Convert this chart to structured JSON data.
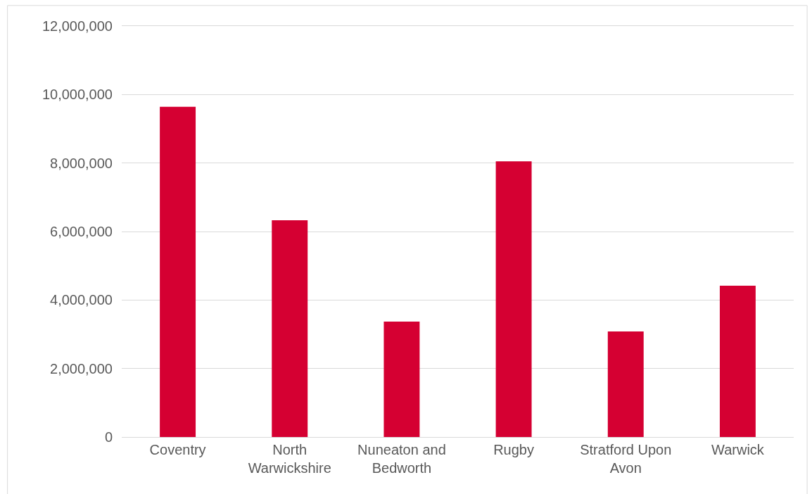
{
  "chart_data": {
    "type": "bar",
    "categories": [
      "Coventry",
      "North Warwickshire",
      "Nuneaton and Bedworth",
      "Rugby",
      "Stratford Upon Avon",
      "Warwick"
    ],
    "values": [
      9640000,
      6330000,
      3370000,
      8050000,
      3080000,
      4420000
    ],
    "color": "#d50032",
    "ylim": [
      0,
      12000000
    ],
    "yticks": [
      {
        "value": 0,
        "label": "0"
      },
      {
        "value": 2000000,
        "label": "2,000,000"
      },
      {
        "value": 4000000,
        "label": "4,000,000"
      },
      {
        "value": 6000000,
        "label": "6,000,000"
      },
      {
        "value": 8000000,
        "label": "8,000,000"
      },
      {
        "value": 10000000,
        "label": "10,000,000"
      },
      {
        "value": 12000000,
        "label": "12,000,000"
      }
    ],
    "grid": "y"
  }
}
